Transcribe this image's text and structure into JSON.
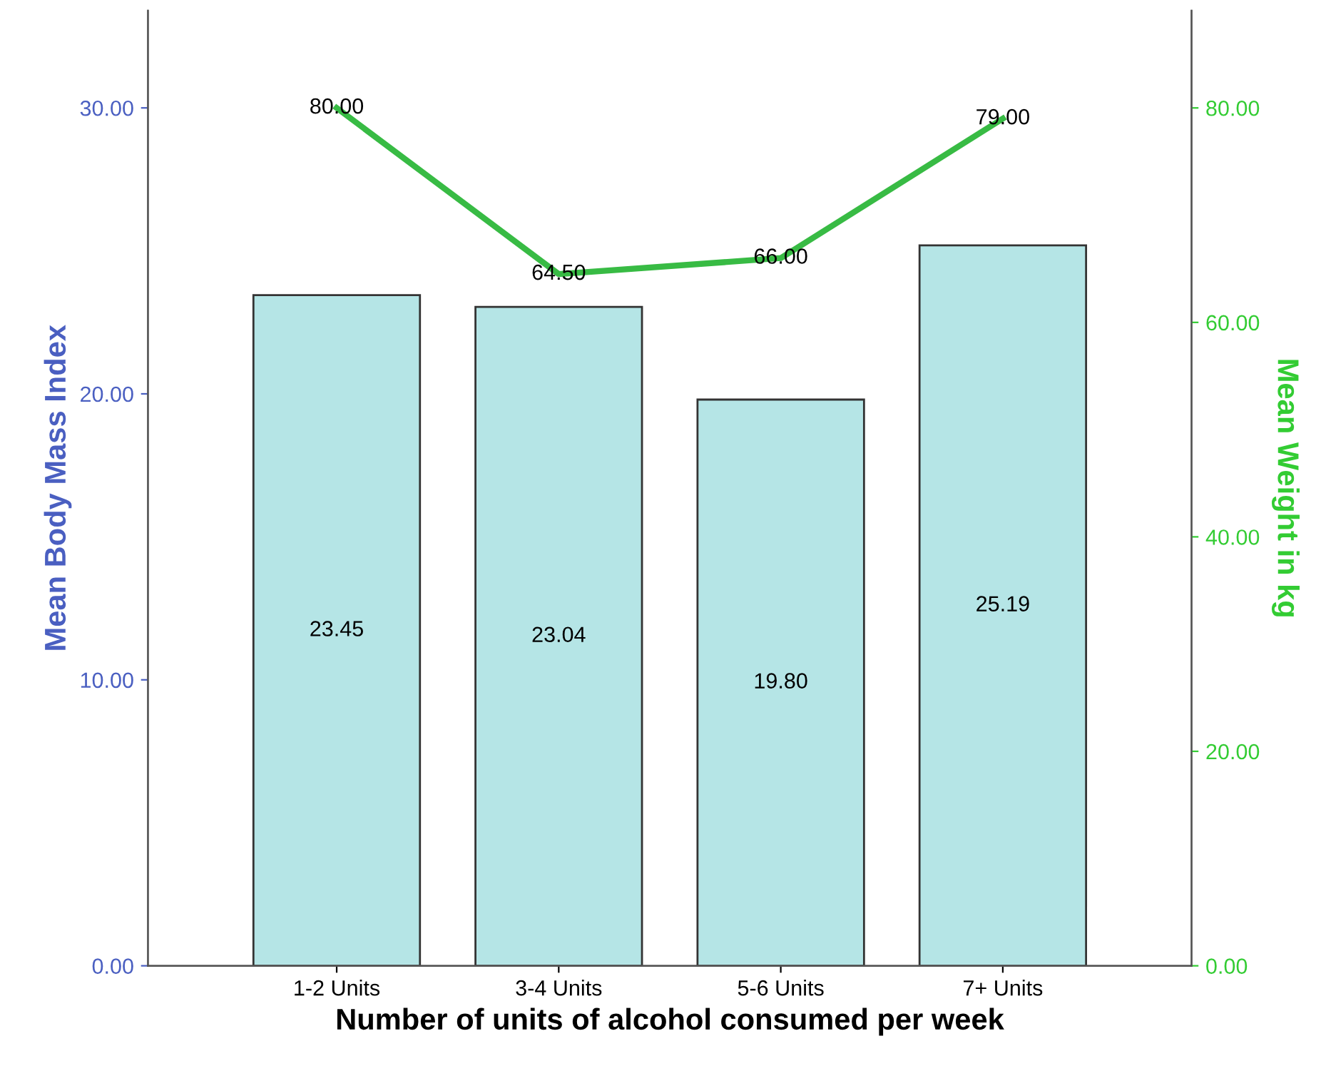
{
  "chart_data": {
    "type": "bar",
    "xlabel": "Number of units of alcohol consumed per week",
    "ylabel": "Mean Body Mass Index",
    "y2label": "Mean Weight in kg",
    "categories": [
      "1-2 Units",
      "3-4 Units",
      "5-6 Units",
      "7+ Units"
    ],
    "series": [
      {
        "color": "#b5e5e6",
        "values": [
          23.45,
          23.04,
          19.8,
          25.19
        ],
        "value_labels": [
          "23.45",
          "23.04",
          "19.80",
          "25.19"
        ]
      },
      {
        "type": "line",
        "axis": "y2",
        "color": "#38bb44",
        "values": [
          80.0,
          64.5,
          66.0,
          79.0
        ],
        "value_labels": [
          "80.00",
          "64.50",
          "66.00",
          "79.00"
        ]
      }
    ],
    "ylim": [
      0,
      33.4
    ],
    "yticks": [
      {
        "value": 0,
        "label": "0.00"
      },
      {
        "value": 10,
        "label": "10.00"
      },
      {
        "value": 20,
        "label": "20.00"
      },
      {
        "value": 30,
        "label": "30.00"
      }
    ],
    "y2lim": [
      0,
      89.07
    ],
    "y2ticks": [
      {
        "value": 0,
        "label": "0.00"
      },
      {
        "value": 20,
        "label": "20.00"
      },
      {
        "value": 40,
        "label": "40.00"
      },
      {
        "value": 60,
        "label": "60.00"
      },
      {
        "value": 80,
        "label": "80.00"
      }
    ],
    "grid": false,
    "line_style": "solid"
  }
}
